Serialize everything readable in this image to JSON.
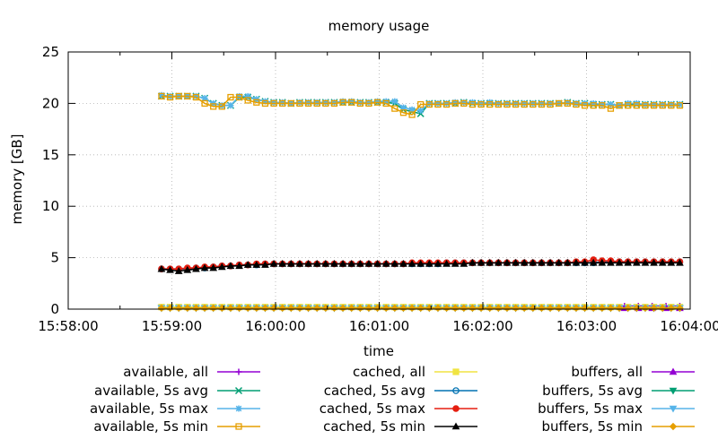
{
  "chart_data": {
    "type": "line",
    "title": "memory usage",
    "xlabel": "time",
    "ylabel": "memory [GB]",
    "x_ticks": [
      "15:58:00",
      "15:59:00",
      "16:00:00",
      "16:01:00",
      "16:02:00",
      "16:03:00",
      "16:04:00"
    ],
    "y_ticks": [
      "0",
      "5",
      "10",
      "15",
      "20",
      "25"
    ],
    "xlim": [
      "15:58:00",
      "16:04:00"
    ],
    "ylim": [
      0,
      25
    ],
    "grid": true,
    "legend_position": "bottom",
    "x_sampling": {
      "start": "15:58:54",
      "end": "16:03:54",
      "step_seconds": 5
    },
    "series": [
      {
        "name": "available, all",
        "color": "#9400d3",
        "marker": "plus",
        "x": [
          "16:03:22",
          "16:03:30",
          "16:03:38",
          "16:03:46",
          "16:03:54"
        ],
        "values": [
          0.3,
          0.3,
          0.3,
          0.3,
          0.3
        ]
      },
      {
        "name": "available, 5s avg",
        "color": "#009e73",
        "marker": "cross",
        "values": [
          20.7,
          20.7,
          20.7,
          20.7,
          20.7,
          20.5,
          20.0,
          19.8,
          19.8,
          20.6,
          20.6,
          20.4,
          20.2,
          20.1,
          20.1,
          20.0,
          20.1,
          20.1,
          20.1,
          20.1,
          20.1,
          20.1,
          20.1,
          20.1,
          20.1,
          20.1,
          20.1,
          20.0,
          19.4,
          19.2,
          19.0,
          20.0,
          20.0,
          20.0,
          20.0,
          20.1,
          20.0,
          20.0,
          20.0,
          20.0,
          20.0,
          20.0,
          20.0,
          20.0,
          20.0,
          20.0,
          20.0,
          20.1,
          20.0,
          20.0,
          19.9,
          19.9,
          19.9,
          19.8,
          19.9,
          19.9,
          19.9,
          19.9,
          19.9,
          19.9,
          19.9
        ]
      },
      {
        "name": "available, 5s max",
        "color": "#56b4e9",
        "marker": "star",
        "values": [
          20.8,
          20.7,
          20.7,
          20.7,
          20.7,
          20.5,
          20.0,
          19.8,
          19.8,
          20.7,
          20.7,
          20.4,
          20.2,
          20.1,
          20.1,
          20.0,
          20.1,
          20.1,
          20.1,
          20.1,
          20.1,
          20.2,
          20.2,
          20.1,
          20.1,
          20.2,
          20.2,
          20.2,
          19.6,
          19.4,
          19.3,
          20.0,
          20.0,
          20.0,
          20.1,
          20.1,
          20.1,
          20.0,
          20.1,
          20.0,
          20.0,
          20.0,
          20.0,
          20.0,
          20.0,
          20.0,
          20.0,
          20.1,
          20.0,
          20.0,
          20.0,
          19.9,
          19.9,
          19.8,
          20.0,
          20.0,
          19.9,
          19.9,
          19.9,
          19.9,
          19.9
        ]
      },
      {
        "name": "available, 5s min",
        "color": "#e69f00",
        "marker": "square",
        "values": [
          20.7,
          20.6,
          20.7,
          20.7,
          20.6,
          20.0,
          19.7,
          19.7,
          20.6,
          20.6,
          20.3,
          20.1,
          20.0,
          20.0,
          20.0,
          20.0,
          20.0,
          20.0,
          20.0,
          20.0,
          20.0,
          20.1,
          20.1,
          20.0,
          20.0,
          20.1,
          20.0,
          19.5,
          19.1,
          18.9,
          19.9,
          19.9,
          19.9,
          19.9,
          20.0,
          20.0,
          19.9,
          19.9,
          19.9,
          19.9,
          19.9,
          19.9,
          19.9,
          19.9,
          19.9,
          19.9,
          20.0,
          20.0,
          19.9,
          19.8,
          19.8,
          19.8,
          19.5,
          19.8,
          19.8,
          19.8,
          19.8,
          19.8,
          19.8,
          19.8,
          19.8
        ]
      },
      {
        "name": "cached, all",
        "color": "#f0e442",
        "marker": "filled-square",
        "values": [
          0.2,
          0.2,
          0.2,
          0.2,
          0.2,
          0.2,
          0.2,
          0.2,
          0.2,
          0.2,
          0.2,
          0.2,
          0.2,
          0.2,
          0.2,
          0.2,
          0.2,
          0.2,
          0.2,
          0.2,
          0.2,
          0.2,
          0.2,
          0.2,
          0.2,
          0.2,
          0.2,
          0.2,
          0.2,
          0.2,
          0.2,
          0.2,
          0.2,
          0.2,
          0.2,
          0.2,
          0.2,
          0.2,
          0.2,
          0.2,
          0.2,
          0.2,
          0.2,
          0.2,
          0.2,
          0.2,
          0.2,
          0.2,
          0.2,
          0.2,
          0.2,
          0.2,
          0.2,
          0.2,
          0.2,
          0.2,
          0.2,
          0.2,
          0.2,
          0.2,
          0.2
        ]
      },
      {
        "name": "cached, 5s avg",
        "color": "#0072b2",
        "marker": "circle",
        "values": [
          3.9,
          3.9,
          3.9,
          3.9,
          4.0,
          4.0,
          4.1,
          4.2,
          4.2,
          4.3,
          4.3,
          4.3,
          4.4,
          4.4,
          4.4,
          4.4,
          4.4,
          4.4,
          4.4,
          4.4,
          4.4,
          4.4,
          4.4,
          4.4,
          4.4,
          4.4,
          4.4,
          4.4,
          4.4,
          4.4,
          4.4,
          4.4,
          4.4,
          4.5,
          4.5,
          4.5,
          4.5,
          4.5,
          4.5,
          4.5,
          4.5,
          4.5,
          4.5,
          4.5,
          4.5,
          4.5,
          4.5,
          4.5,
          4.5,
          4.5,
          4.5,
          4.6,
          4.6,
          4.6,
          4.6,
          4.6,
          4.6,
          4.6,
          4.6,
          4.6,
          4.6
        ]
      },
      {
        "name": "cached, 5s max",
        "color": "#e51e10",
        "marker": "filled-circle",
        "values": [
          3.9,
          3.9,
          3.9,
          4.0,
          4.0,
          4.1,
          4.1,
          4.2,
          4.2,
          4.3,
          4.3,
          4.4,
          4.4,
          4.4,
          4.4,
          4.4,
          4.4,
          4.4,
          4.4,
          4.4,
          4.4,
          4.4,
          4.4,
          4.4,
          4.4,
          4.4,
          4.4,
          4.4,
          4.4,
          4.5,
          4.5,
          4.5,
          4.5,
          4.5,
          4.5,
          4.5,
          4.5,
          4.5,
          4.5,
          4.5,
          4.5,
          4.5,
          4.5,
          4.5,
          4.5,
          4.5,
          4.5,
          4.5,
          4.6,
          4.6,
          4.8,
          4.7,
          4.7,
          4.6,
          4.6,
          4.6,
          4.6,
          4.6,
          4.6,
          4.6,
          4.6
        ]
      },
      {
        "name": "cached, 5s min",
        "color": "#000000",
        "marker": "triangle",
        "values": [
          3.9,
          3.8,
          3.7,
          3.8,
          3.9,
          4.0,
          4.0,
          4.1,
          4.2,
          4.2,
          4.3,
          4.3,
          4.3,
          4.4,
          4.4,
          4.4,
          4.4,
          4.4,
          4.4,
          4.4,
          4.4,
          4.4,
          4.4,
          4.4,
          4.4,
          4.4,
          4.4,
          4.4,
          4.4,
          4.4,
          4.4,
          4.4,
          4.4,
          4.4,
          4.4,
          4.4,
          4.5,
          4.5,
          4.5,
          4.5,
          4.5,
          4.5,
          4.5,
          4.5,
          4.5,
          4.5,
          4.5,
          4.5,
          4.5,
          4.5,
          4.5,
          4.5,
          4.5,
          4.5,
          4.5,
          4.5,
          4.5,
          4.5,
          4.5,
          4.5,
          4.5
        ]
      },
      {
        "name": "buffers, all",
        "color": "#9400d3",
        "marker": "filled-triangle",
        "x": [
          "16:03:22",
          "16:03:30",
          "16:03:38",
          "16:03:46",
          "16:03:54"
        ],
        "values": [
          0.1,
          0.1,
          0.1,
          0.1,
          0.1
        ]
      },
      {
        "name": "buffers, 5s avg",
        "color": "#009e73",
        "marker": "filled-down-triangle",
        "values": [
          0.1,
          0.1,
          0.1,
          0.1,
          0.1,
          0.1,
          0.1,
          0.1,
          0.1,
          0.1,
          0.1,
          0.1,
          0.1,
          0.1,
          0.1,
          0.1,
          0.1,
          0.1,
          0.1,
          0.1,
          0.1,
          0.1,
          0.1,
          0.1,
          0.1,
          0.1,
          0.1,
          0.1,
          0.1,
          0.1,
          0.1,
          0.1,
          0.1,
          0.1,
          0.1,
          0.1,
          0.1,
          0.1,
          0.1,
          0.1,
          0.1,
          0.1,
          0.1,
          0.1,
          0.1,
          0.1,
          0.1,
          0.1,
          0.1,
          0.1,
          0.1,
          0.1,
          0.1,
          0.1,
          0.1,
          0.1,
          0.1,
          0.1,
          0.1,
          0.1,
          0.1
        ]
      },
      {
        "name": "buffers, 5s max",
        "color": "#56b4e9",
        "marker": "filled-down-triangle",
        "values": [
          0.1,
          0.1,
          0.1,
          0.1,
          0.1,
          0.1,
          0.1,
          0.1,
          0.1,
          0.1,
          0.1,
          0.1,
          0.1,
          0.1,
          0.1,
          0.1,
          0.1,
          0.1,
          0.1,
          0.1,
          0.1,
          0.1,
          0.1,
          0.1,
          0.1,
          0.1,
          0.1,
          0.1,
          0.1,
          0.1,
          0.1,
          0.1,
          0.1,
          0.1,
          0.1,
          0.1,
          0.1,
          0.1,
          0.1,
          0.1,
          0.1,
          0.1,
          0.1,
          0.1,
          0.1,
          0.1,
          0.1,
          0.1,
          0.1,
          0.1,
          0.1,
          0.1,
          0.1,
          0.1,
          0.1,
          0.1,
          0.1,
          0.1,
          0.1,
          0.1,
          0.1
        ]
      },
      {
        "name": "buffers, 5s min",
        "color": "#e69f00",
        "marker": "filled-diamond",
        "values": [
          0.1,
          0.1,
          0.1,
          0.1,
          0.1,
          0.1,
          0.1,
          0.1,
          0.1,
          0.1,
          0.1,
          0.1,
          0.1,
          0.1,
          0.1,
          0.1,
          0.1,
          0.1,
          0.1,
          0.1,
          0.1,
          0.1,
          0.1,
          0.1,
          0.1,
          0.1,
          0.1,
          0.1,
          0.1,
          0.1,
          0.1,
          0.1,
          0.1,
          0.1,
          0.1,
          0.1,
          0.1,
          0.1,
          0.1,
          0.1,
          0.1,
          0.1,
          0.1,
          0.1,
          0.1,
          0.1,
          0.1,
          0.1,
          0.1,
          0.1,
          0.1,
          0.1,
          0.1,
          0.1,
          0.1,
          0.1,
          0.1,
          0.1,
          0.1,
          0.1,
          0.1
        ]
      }
    ]
  }
}
